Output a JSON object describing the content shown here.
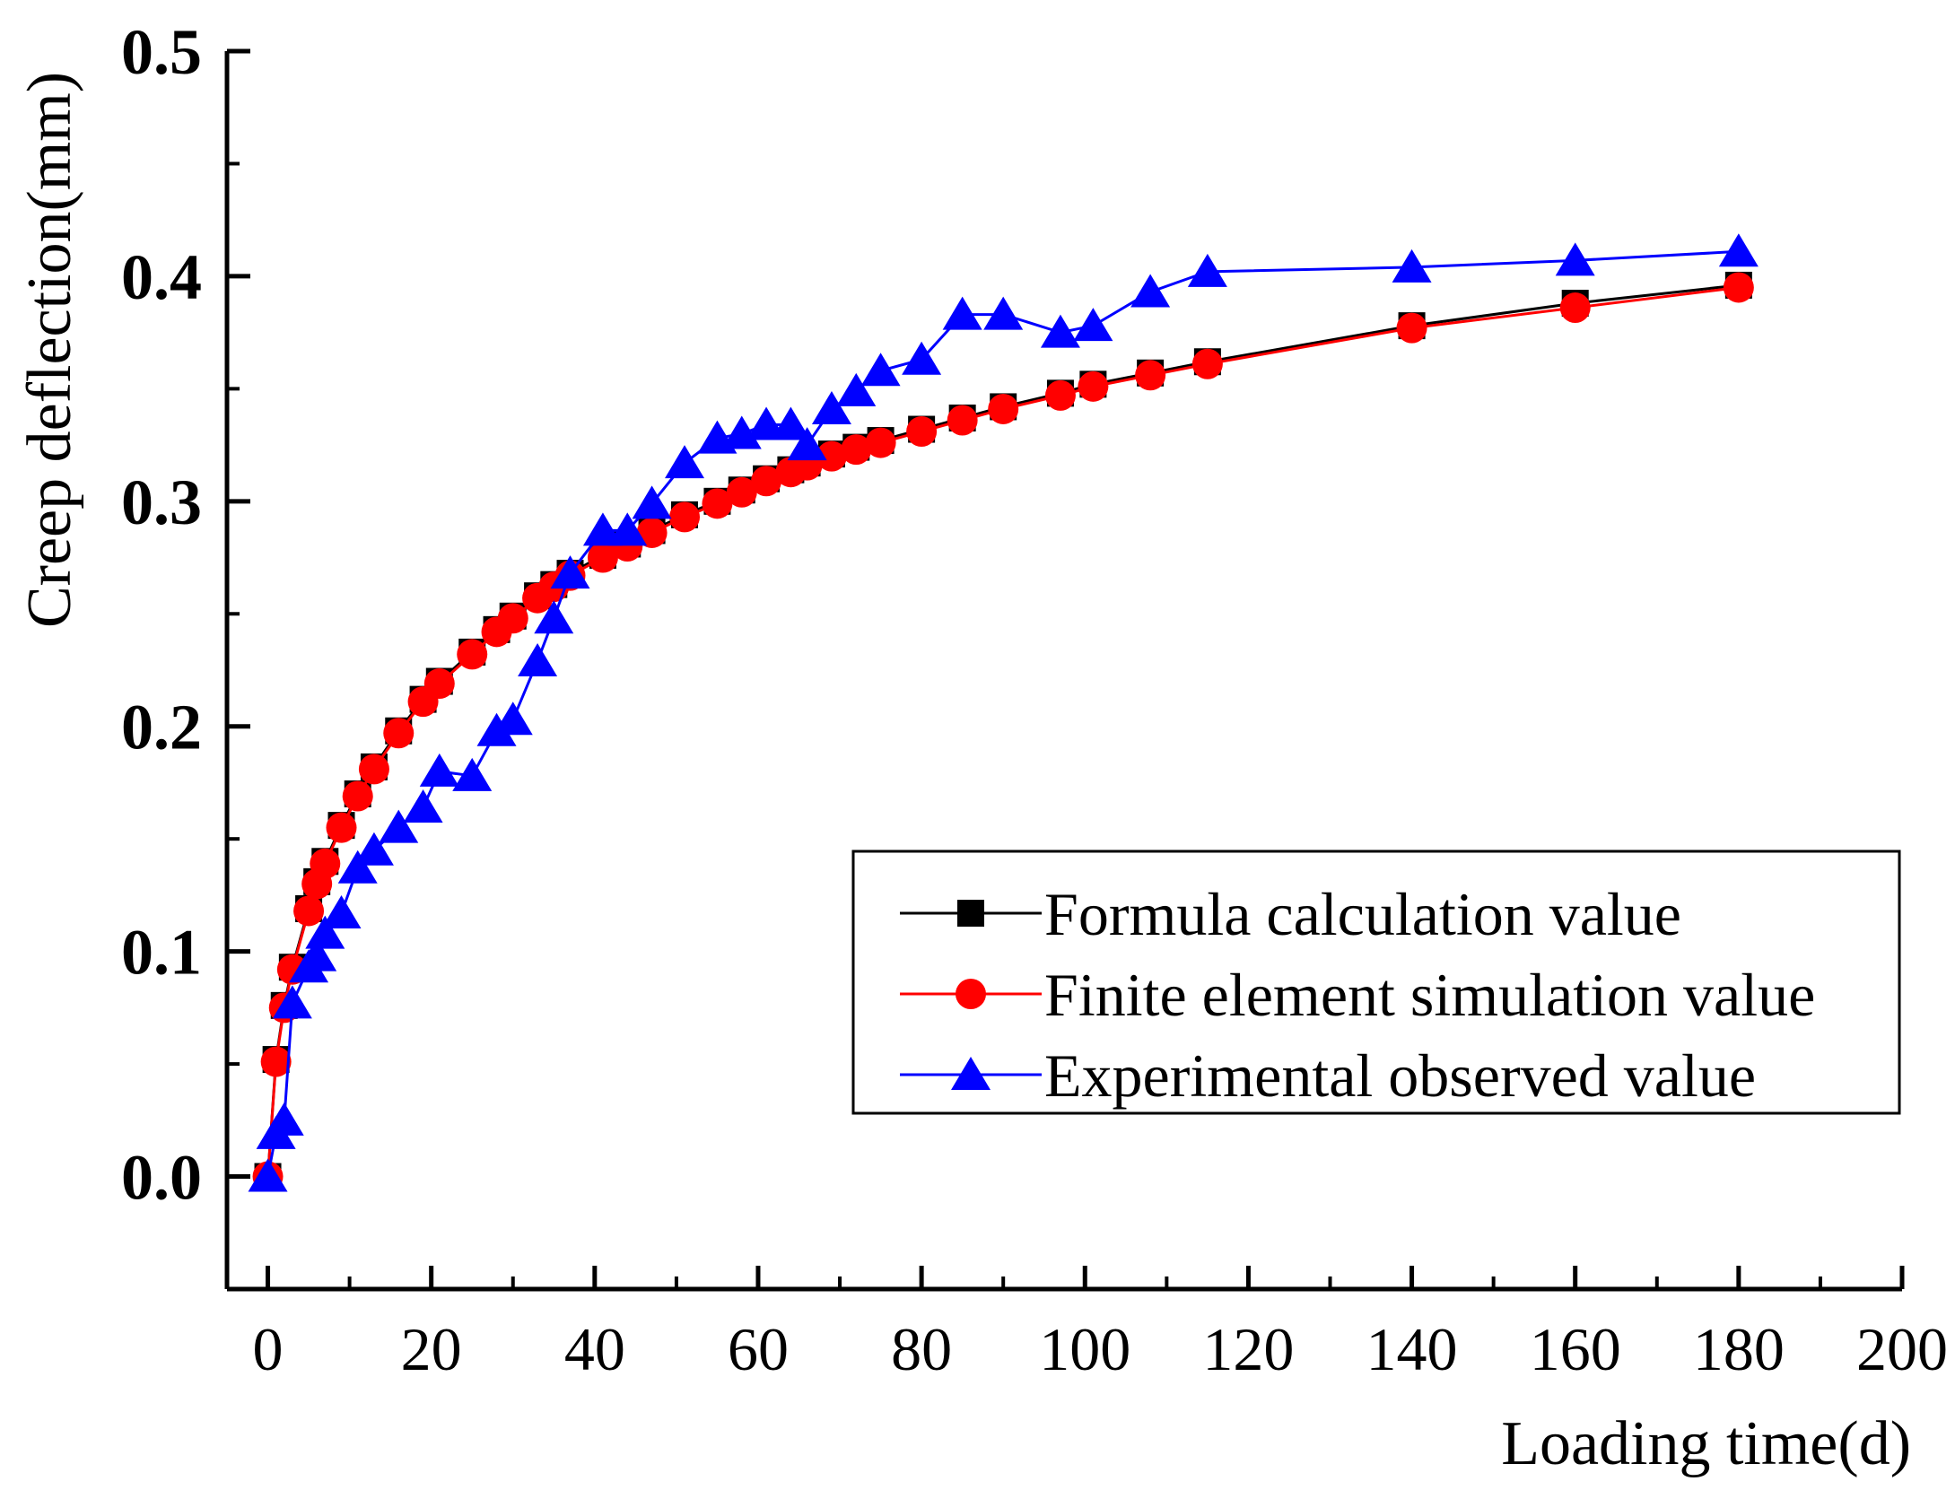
{
  "chart_data": {
    "type": "line",
    "title": "",
    "xlabel": "Loading time(d)",
    "ylabel": "Creep deflection(mm)",
    "xlim": [
      -5,
      200
    ],
    "ylim": [
      -0.05,
      0.5
    ],
    "xticks": [
      0,
      20,
      40,
      60,
      80,
      100,
      120,
      140,
      160,
      180,
      200
    ],
    "xtick_labels": [
      "0",
      "20",
      "40",
      "60",
      "80",
      "100",
      "120",
      "140",
      "160",
      "180",
      "200"
    ],
    "yticks": [
      0.0,
      0.1,
      0.2,
      0.3,
      0.4,
      0.5
    ],
    "ytick_labels": [
      "0.0",
      "0.1",
      "0.2",
      "0.3",
      "0.4",
      "0.5"
    ],
    "grid": false,
    "legend_position": "lower-right",
    "series": [
      {
        "name": "Formula calculation value",
        "color": "#000000",
        "marker": "square",
        "x": [
          0,
          1,
          2,
          3,
          5,
          6,
          7,
          9,
          11,
          13,
          16,
          19,
          21,
          25,
          28,
          30,
          33,
          35,
          37,
          41,
          44,
          47,
          51,
          55,
          58,
          61,
          64,
          66,
          69,
          72,
          75,
          80,
          85,
          90,
          97,
          101,
          108,
          115,
          140,
          160,
          180
        ],
        "y": [
          0,
          0.052,
          0.076,
          0.093,
          0.119,
          0.131,
          0.14,
          0.156,
          0.17,
          0.182,
          0.198,
          0.212,
          0.22,
          0.233,
          0.243,
          0.249,
          0.258,
          0.263,
          0.268,
          0.276,
          0.281,
          0.287,
          0.294,
          0.3,
          0.305,
          0.31,
          0.314,
          0.317,
          0.321,
          0.324,
          0.327,
          0.332,
          0.337,
          0.342,
          0.348,
          0.352,
          0.357,
          0.362,
          0.378,
          0.388,
          0.396
        ]
      },
      {
        "name": "Finite element simulation value",
        "color": "#ff0000",
        "marker": "circle",
        "x": [
          0,
          1,
          2,
          3,
          5,
          6,
          7,
          9,
          11,
          13,
          16,
          19,
          21,
          25,
          28,
          30,
          33,
          35,
          37,
          41,
          44,
          47,
          51,
          55,
          58,
          61,
          64,
          66,
          69,
          72,
          75,
          80,
          85,
          90,
          97,
          101,
          108,
          115,
          140,
          160,
          180
        ],
        "y": [
          0,
          0.051,
          0.075,
          0.092,
          0.118,
          0.13,
          0.139,
          0.155,
          0.169,
          0.181,
          0.197,
          0.211,
          0.219,
          0.232,
          0.242,
          0.248,
          0.257,
          0.262,
          0.267,
          0.275,
          0.28,
          0.286,
          0.293,
          0.299,
          0.304,
          0.309,
          0.313,
          0.316,
          0.32,
          0.323,
          0.326,
          0.331,
          0.336,
          0.341,
          0.347,
          0.351,
          0.356,
          0.361,
          0.377,
          0.386,
          0.395
        ]
      },
      {
        "name": "Experimental observed value",
        "color": "#0000ff",
        "marker": "triangle",
        "x": [
          0,
          1,
          2,
          3,
          5,
          6,
          7,
          9,
          11,
          13,
          16,
          19,
          21,
          25,
          28,
          30,
          33,
          35,
          37,
          41,
          44,
          47,
          51,
          55,
          58,
          61,
          64,
          66,
          69,
          72,
          75,
          80,
          85,
          90,
          97,
          101,
          108,
          115,
          140,
          160,
          180
        ],
        "y": [
          0,
          0.019,
          0.025,
          0.077,
          0.093,
          0.098,
          0.108,
          0.117,
          0.137,
          0.145,
          0.155,
          0.164,
          0.18,
          0.178,
          0.198,
          0.203,
          0.229,
          0.248,
          0.268,
          0.287,
          0.287,
          0.299,
          0.317,
          0.328,
          0.33,
          0.334,
          0.334,
          0.325,
          0.341,
          0.349,
          0.358,
          0.363,
          0.383,
          0.383,
          0.375,
          0.378,
          0.393,
          0.402,
          0.404,
          0.407,
          0.411
        ]
      }
    ]
  }
}
